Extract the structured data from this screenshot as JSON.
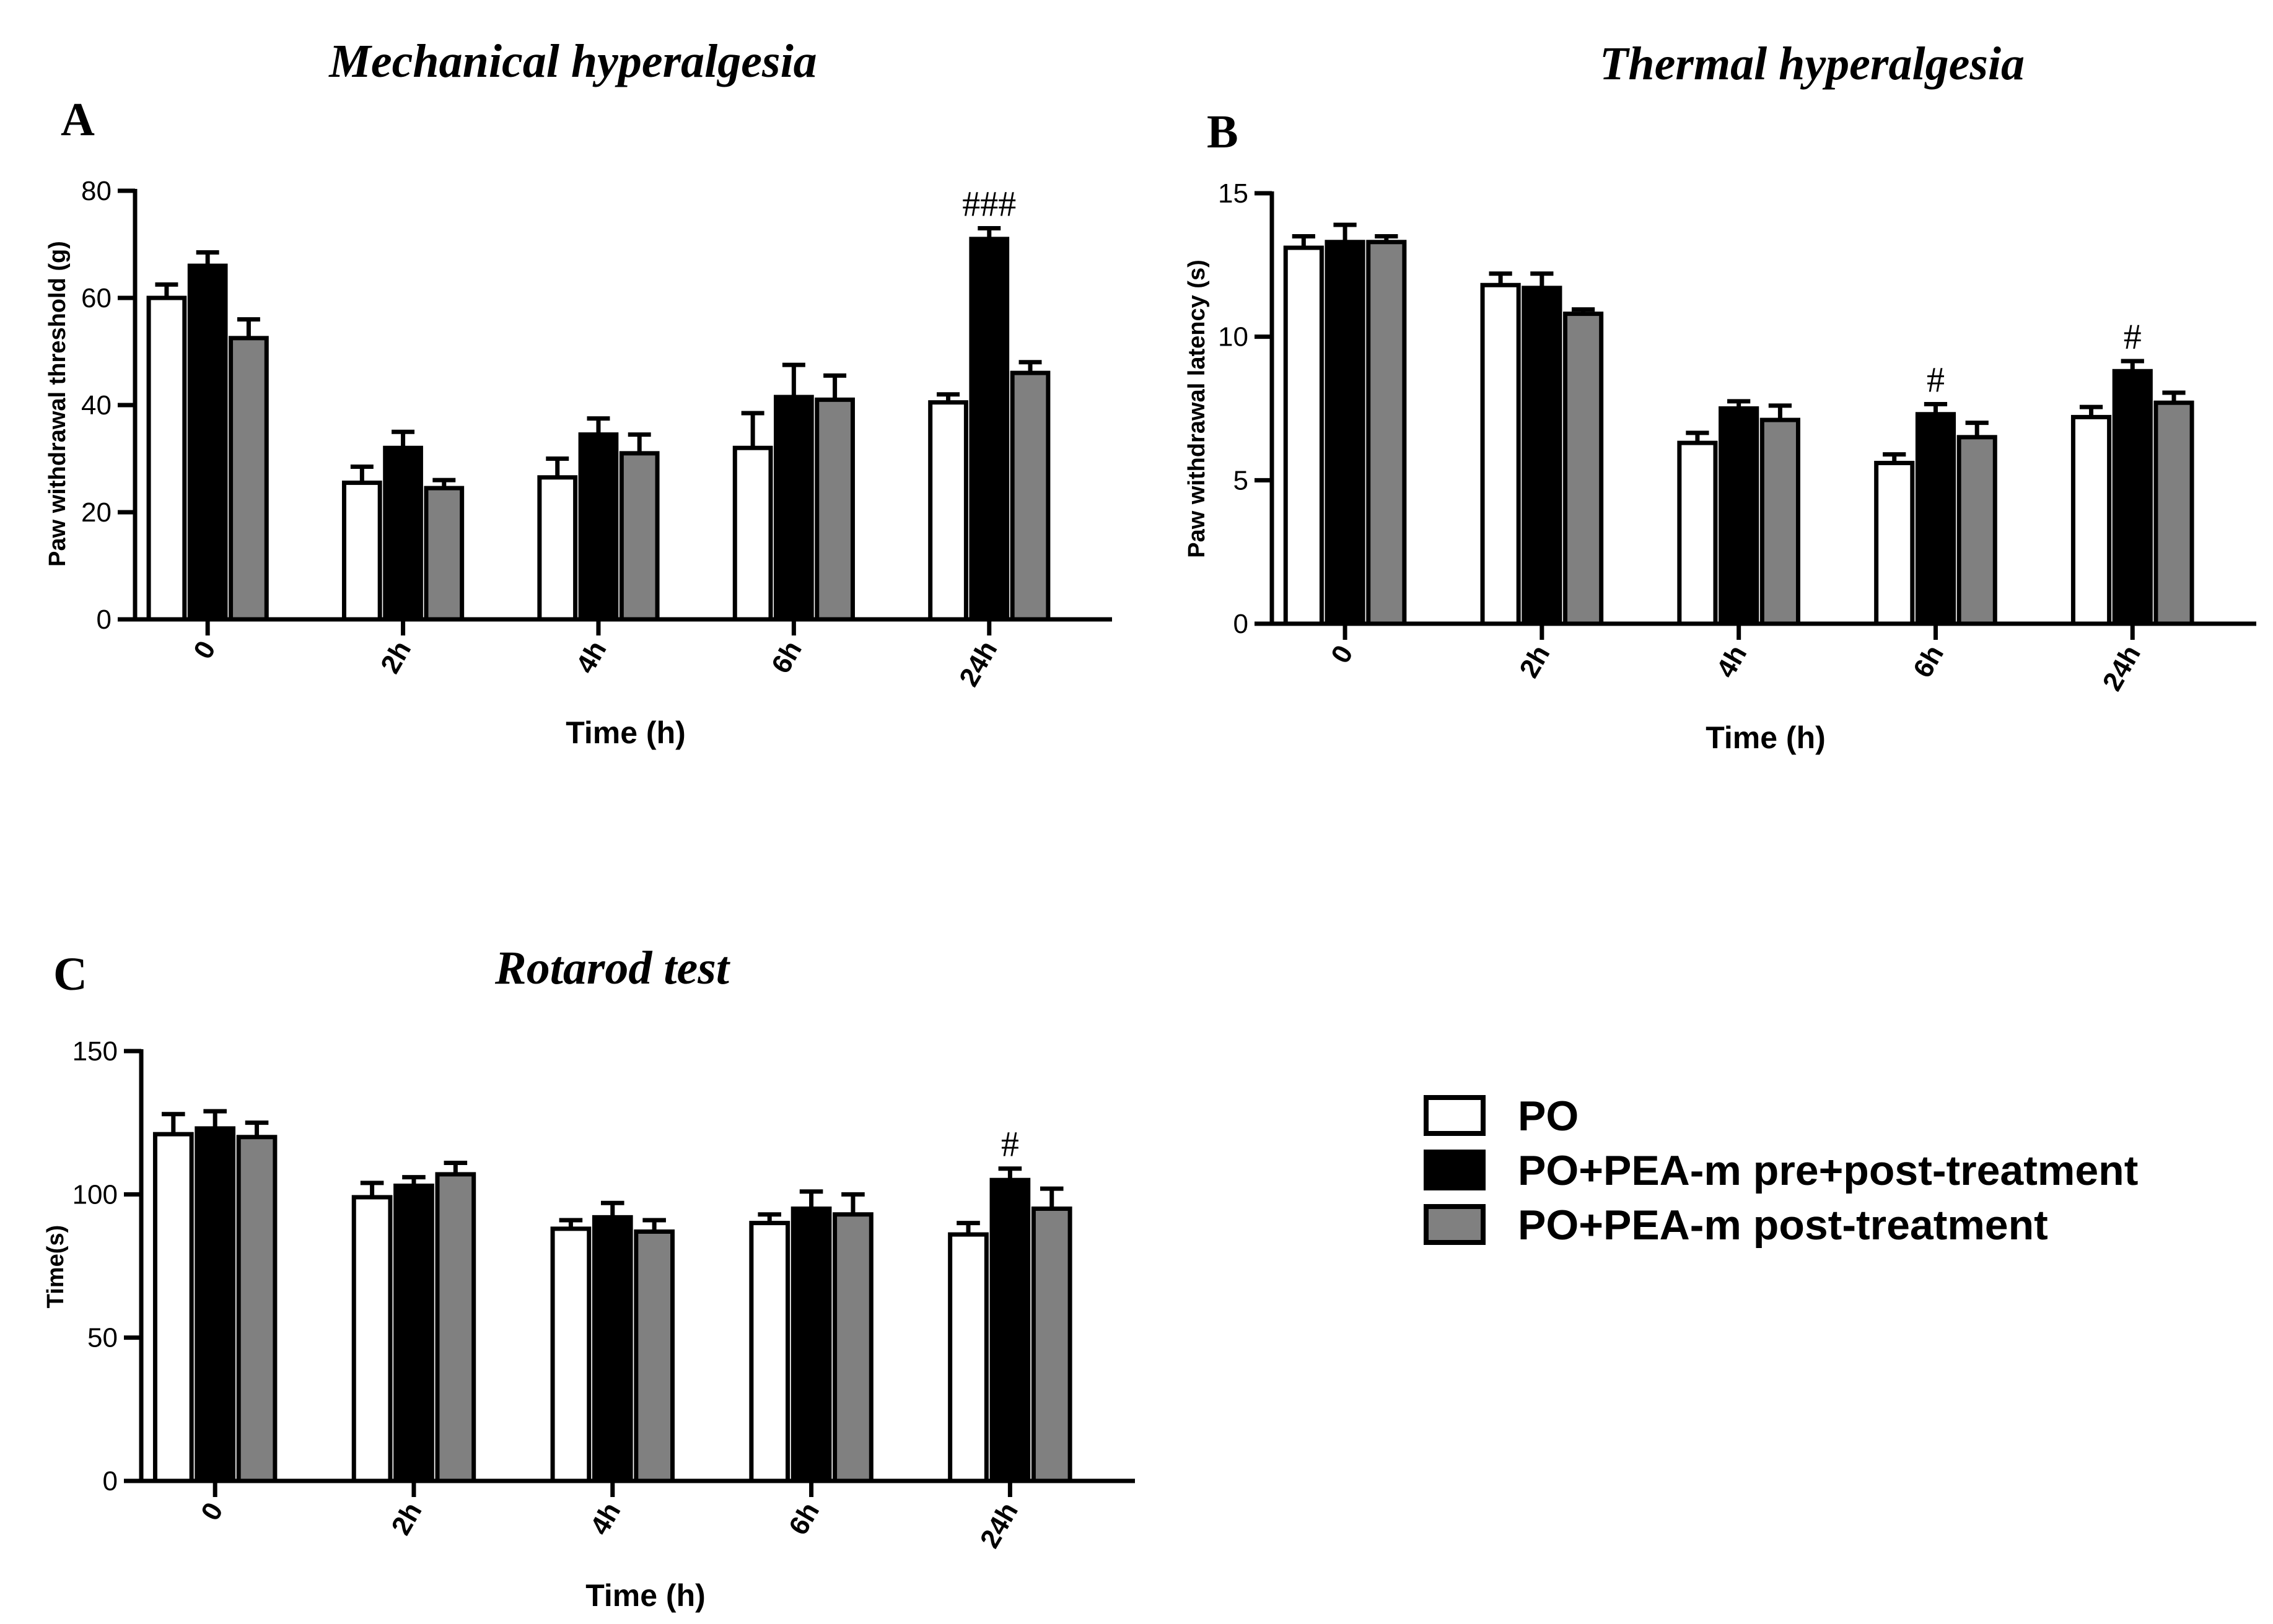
{
  "colors": {
    "PO": "#ffffff",
    "PO+PEA-m pre+post-treatment": "#000000",
    "PO+PEA-m post-treatment": "#808080"
  },
  "legend": [
    "PO",
    "PO+PEA-m pre+post-treatment",
    "PO+PEA-m post-treatment"
  ],
  "chart_data": [
    {
      "type": "bar",
      "letter": "A",
      "title": "Mechanical hyperalgesia",
      "xlabel": "Time (h)",
      "ylabel": "Paw withdrawal threshold (g)",
      "ylim": [
        0,
        80
      ],
      "yticks": [
        0,
        20,
        40,
        60,
        80
      ],
      "categories": [
        "0",
        "2h",
        "4h",
        "6h",
        "24h"
      ],
      "series": [
        {
          "name": "PO",
          "values": [
            60,
            25.5,
            26.5,
            32,
            40.5
          ],
          "errors": [
            2.5,
            3,
            3.5,
            6.5,
            1.5
          ]
        },
        {
          "name": "PO+PEA-m pre+post-treatment",
          "values": [
            66,
            32,
            34.5,
            41.5,
            71
          ],
          "errors": [
            2.5,
            3,
            3,
            6,
            2
          ]
        },
        {
          "name": "PO+PEA-m post-treatment",
          "values": [
            52.5,
            24.5,
            31,
            41,
            46
          ],
          "errors": [
            3.5,
            1.5,
            3.5,
            4.5,
            2
          ]
        }
      ],
      "annotations": [
        {
          "category": "24h",
          "series": 1,
          "text": "###"
        }
      ]
    },
    {
      "type": "bar",
      "letter": "B",
      "title": "Thermal hyperalgesia",
      "xlabel": "Time (h)",
      "ylabel": "Paw withdrawal latency (s)",
      "ylim": [
        0,
        15
      ],
      "yticks": [
        0,
        5,
        10,
        15
      ],
      "categories": [
        "0",
        "2h",
        "4h",
        "6h",
        "24h"
      ],
      "series": [
        {
          "name": "PO",
          "values": [
            13.1,
            11.8,
            6.3,
            5.6,
            7.2
          ],
          "errors": [
            0.4,
            0.4,
            0.35,
            0.3,
            0.35
          ]
        },
        {
          "name": "PO+PEA-m pre+post-treatment",
          "values": [
            13.3,
            11.7,
            7.5,
            7.3,
            8.8
          ],
          "errors": [
            0.6,
            0.5,
            0.25,
            0.35,
            0.35
          ]
        },
        {
          "name": "PO+PEA-m post-treatment",
          "values": [
            13.3,
            10.8,
            7.1,
            6.5,
            7.7
          ],
          "errors": [
            0.2,
            0.15,
            0.5,
            0.5,
            0.35
          ]
        }
      ],
      "annotations": [
        {
          "category": "6h",
          "series": 1,
          "text": "#"
        },
        {
          "category": "24h",
          "series": 1,
          "text": "#"
        }
      ]
    },
    {
      "type": "bar",
      "letter": "C",
      "title": "Rotarod test",
      "xlabel": "Time (h)",
      "ylabel": "Time(s)",
      "ylim": [
        0,
        150
      ],
      "yticks": [
        0,
        50,
        100,
        150
      ],
      "categories": [
        "0",
        "2h",
        "4h",
        "6h",
        "24h"
      ],
      "series": [
        {
          "name": "PO",
          "values": [
            121,
            99,
            88,
            90,
            86
          ],
          "errors": [
            7,
            5,
            3,
            3,
            4
          ]
        },
        {
          "name": "PO+PEA-m pre+post-treatment",
          "values": [
            123,
            103,
            92,
            95,
            105
          ],
          "errors": [
            6,
            3,
            5,
            6,
            4
          ]
        },
        {
          "name": "PO+PEA-m post-treatment",
          "values": [
            120,
            107,
            87,
            93,
            95
          ],
          "errors": [
            5,
            4,
            4,
            7,
            7
          ]
        }
      ],
      "annotations": [
        {
          "category": "24h",
          "series": 1,
          "text": "#"
        }
      ]
    }
  ]
}
